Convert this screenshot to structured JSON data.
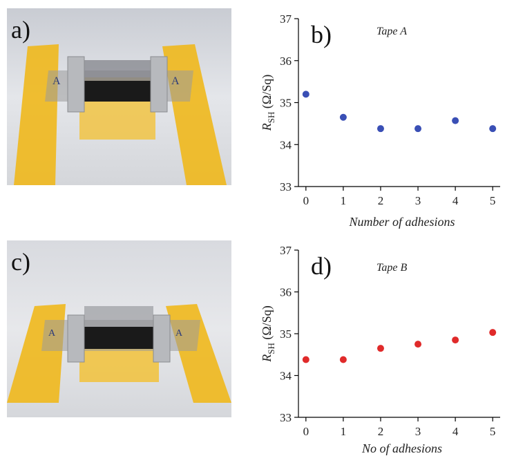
{
  "panels": {
    "a": "a)",
    "b": "b)",
    "c": "c)",
    "d": "d)"
  },
  "photos": {
    "tape_a_marks": [
      "A",
      "A"
    ],
    "tape_b_marks": [
      "A",
      "A"
    ]
  },
  "colors": {
    "tape_a": "#3a4fb5",
    "tape_b": "#e02a2a",
    "tape_yellow": "#f0b81c"
  },
  "chart_data": [
    {
      "type": "scatter",
      "panel": "b)",
      "title": "Tape A",
      "xlabel": "Number of adhesions",
      "ylabel_main": "R",
      "ylabel_sub": "SH",
      "ylabel_unit": "(Ω/Sq)",
      "x": [
        0,
        1,
        2,
        3,
        4,
        5
      ],
      "y": [
        35.2,
        34.65,
        34.38,
        34.38,
        34.57,
        34.38
      ],
      "xlim": [
        -0.2,
        5.2
      ],
      "ylim": [
        33,
        37
      ],
      "xticks": [
        "0",
        "1",
        "2",
        "3",
        "4",
        "5"
      ],
      "yticks": [
        "33",
        "34",
        "35",
        "36",
        "37"
      ],
      "color": "#3a4fb5",
      "grid": false
    },
    {
      "type": "scatter",
      "panel": "d)",
      "title": "Tape B",
      "xlabel": "No of adhesions",
      "ylabel_main": "R",
      "ylabel_sub": "SH",
      "ylabel_unit": "(Ω/Sq)",
      "x": [
        0,
        1,
        2,
        3,
        4,
        5
      ],
      "y": [
        34.38,
        34.38,
        34.65,
        34.75,
        34.85,
        35.03
      ],
      "xlim": [
        -0.2,
        5.2
      ],
      "ylim": [
        33,
        37
      ],
      "xticks": [
        "0",
        "1",
        "2",
        "3",
        "4",
        "5"
      ],
      "yticks": [
        "33",
        "34",
        "35",
        "36",
        "37"
      ],
      "color": "#e02a2a",
      "grid": false
    }
  ]
}
